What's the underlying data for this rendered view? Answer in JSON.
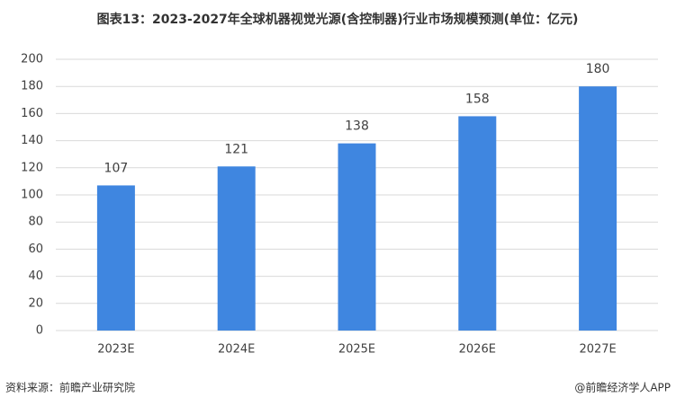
{
  "chart_data": {
    "type": "bar",
    "title": "图表13：2023-2027年全球机器视觉光源(含控制器)行业市场规模预测(单位：亿元)",
    "categories": [
      "2023E",
      "2024E",
      "2025E",
      "2026E",
      "2027E"
    ],
    "values": [
      107,
      121,
      138,
      158,
      180
    ],
    "color": "#3f86e0",
    "ylim": [
      0,
      200
    ],
    "yticks": [
      0,
      20,
      40,
      60,
      80,
      100,
      120,
      140,
      160,
      180,
      200
    ],
    "grid": true,
    "source": "资料来源：前瞻产业研究院",
    "credit": "@前瞻经济学人APP"
  }
}
